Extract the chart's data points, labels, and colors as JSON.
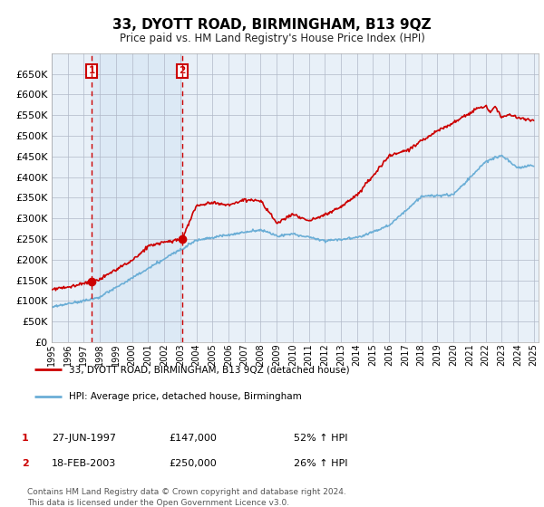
{
  "title": "33, DYOTT ROAD, BIRMINGHAM, B13 9QZ",
  "subtitle": "Price paid vs. HM Land Registry's House Price Index (HPI)",
  "legend_line1": "33, DYOTT ROAD, BIRMINGHAM, B13 9QZ (detached house)",
  "legend_line2": "HPI: Average price, detached house, Birmingham",
  "footer": "Contains HM Land Registry data © Crown copyright and database right 2024.\nThis data is licensed under the Open Government Licence v3.0.",
  "sale1_label": "1",
  "sale2_label": "2",
  "sale1_date": "27-JUN-1997",
  "sale1_price": "£147,000",
  "sale1_hpi": "52% ↑ HPI",
  "sale2_date": "18-FEB-2003",
  "sale2_price": "£250,000",
  "sale2_hpi": "26% ↑ HPI",
  "hpi_color": "#6baed6",
  "price_color": "#cc0000",
  "vline_color": "#cc0000",
  "shading_color": "#dce9f5",
  "plot_bg": "#e8f0f8",
  "fig_bg": "#ffffff",
  "grid_color": "#b0b8c8",
  "ylim": [
    0,
    700000
  ],
  "yticks": [
    0,
    50000,
    100000,
    150000,
    200000,
    250000,
    300000,
    350000,
    400000,
    450000,
    500000,
    550000,
    600000,
    650000
  ],
  "sale1_year": 1997.49,
  "sale2_year": 2003.12,
  "sale1_value": 147000,
  "sale2_value": 250000,
  "xlim_start": 1995,
  "xlim_end": 2025.3
}
